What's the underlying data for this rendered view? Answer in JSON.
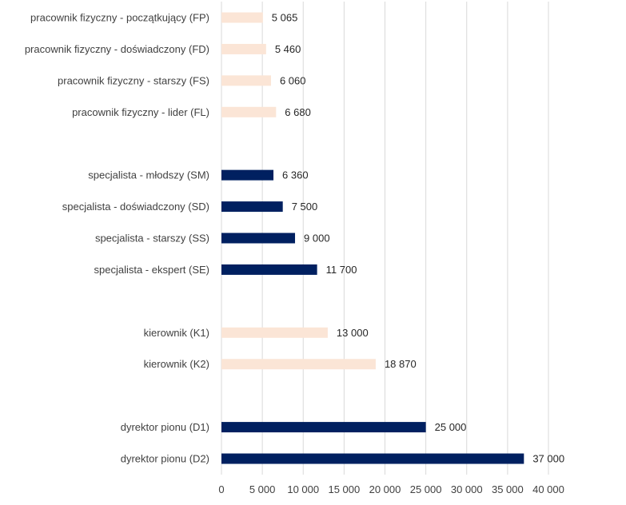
{
  "chart_data": {
    "type": "bar",
    "orientation": "horizontal",
    "title": "",
    "xlabel": "",
    "ylabel": "",
    "xlim": [
      0,
      40000
    ],
    "grid": true,
    "categories": [
      "pracownik fizyczny - początkujący (FP)",
      "pracownik fizyczny - doświadczony (FD)",
      "pracownik fizyczny - starszy (FS)",
      "pracownik fizyczny - lider (FL)",
      "",
      "specjalista - młodszy (SM)",
      "specjalista - doświadczony (SD)",
      "specjalista - starszy (SS)",
      "specjalista - ekspert (SE)",
      "",
      "kierownik (K1)",
      "kierownik (K2)",
      "",
      "dyrektor pionu (D1)",
      "dyrektor pionu (D2)"
    ],
    "values": [
      5065,
      5460,
      6060,
      6680,
      null,
      6360,
      7500,
      9000,
      11700,
      null,
      13000,
      18870,
      null,
      25000,
      37000
    ],
    "value_labels": [
      "5 065",
      "5 460",
      "6 060",
      "6 680",
      "",
      "6 360",
      "7 500",
      "9 000",
      "11 700",
      "",
      "13 000",
      "18 870",
      "",
      "25 000",
      "37 000"
    ],
    "groups": [
      "light",
      "light",
      "light",
      "light",
      "",
      "dark",
      "dark",
      "dark",
      "dark",
      "",
      "light",
      "light",
      "",
      "dark",
      "dark"
    ],
    "ticks": [
      0,
      5000,
      10000,
      15000,
      20000,
      25000,
      30000,
      35000,
      40000
    ],
    "tick_labels": [
      "0",
      "5 000",
      "10 000",
      "15 000",
      "20 000",
      "25 000",
      "30 000",
      "35 000",
      "40 000"
    ],
    "colors": {
      "light": "#fbe5d6",
      "dark": "#002060"
    }
  }
}
